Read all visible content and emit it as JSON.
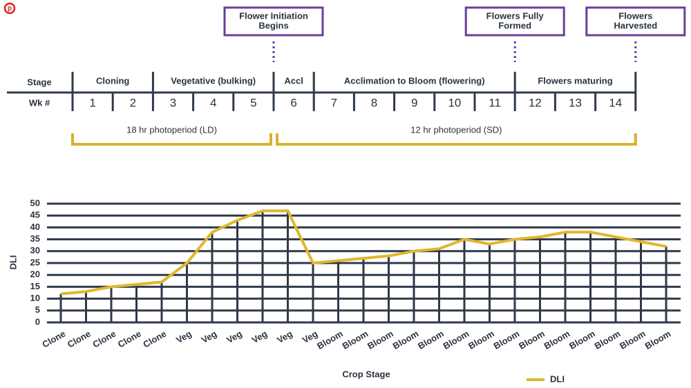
{
  "timeline": {
    "stage_label": "Stage",
    "week_label": "Wk #",
    "stages": [
      "Cloning",
      "Vegetative (bulking)",
      "Accl",
      "Acclimation to Bloom (flowering)",
      "Flowers maturing"
    ],
    "weeks": [
      1,
      2,
      3,
      4,
      5,
      6,
      7,
      8,
      9,
      10,
      11,
      12,
      13,
      14
    ],
    "photoperiods": [
      "18 hr photoperiod (LD)",
      "12 hr photoperiod (SD)"
    ],
    "milestones": [
      [
        "Flower Initiation",
        "Begins"
      ],
      [
        "Flowers Fully",
        "Formed"
      ],
      [
        "Flowers",
        "Harvested"
      ]
    ]
  },
  "chart_data": {
    "type": "line",
    "x_label": "Crop Stage",
    "y_label": "DLI",
    "categories": [
      "Clone",
      "Clone",
      "Clone",
      "Clone",
      "Clone",
      "Veg",
      "Veg",
      "Veg",
      "Veg",
      "Veg",
      "Veg",
      "Bloom",
      "Bloom",
      "Bloom",
      "Bloom",
      "Bloom",
      "Bloom",
      "Bloom",
      "Bloom",
      "Bloom",
      "Bloom",
      "Bloom",
      "Bloom",
      "Bloom",
      "Bloom"
    ],
    "series": [
      {
        "name": "DLI",
        "color": "#dfb72c",
        "values": [
          12,
          13,
          15,
          16,
          17,
          25,
          38,
          43,
          47,
          47,
          25,
          26,
          27,
          28,
          30,
          31,
          35,
          33,
          35,
          36,
          38,
          38,
          36,
          34,
          32
        ]
      }
    ],
    "ylim": [
      0,
      50
    ],
    "yticks": [
      0,
      5,
      10,
      15,
      20,
      25,
      30,
      35,
      40,
      45,
      50
    ],
    "grid": true,
    "legend": "bottom-right"
  }
}
